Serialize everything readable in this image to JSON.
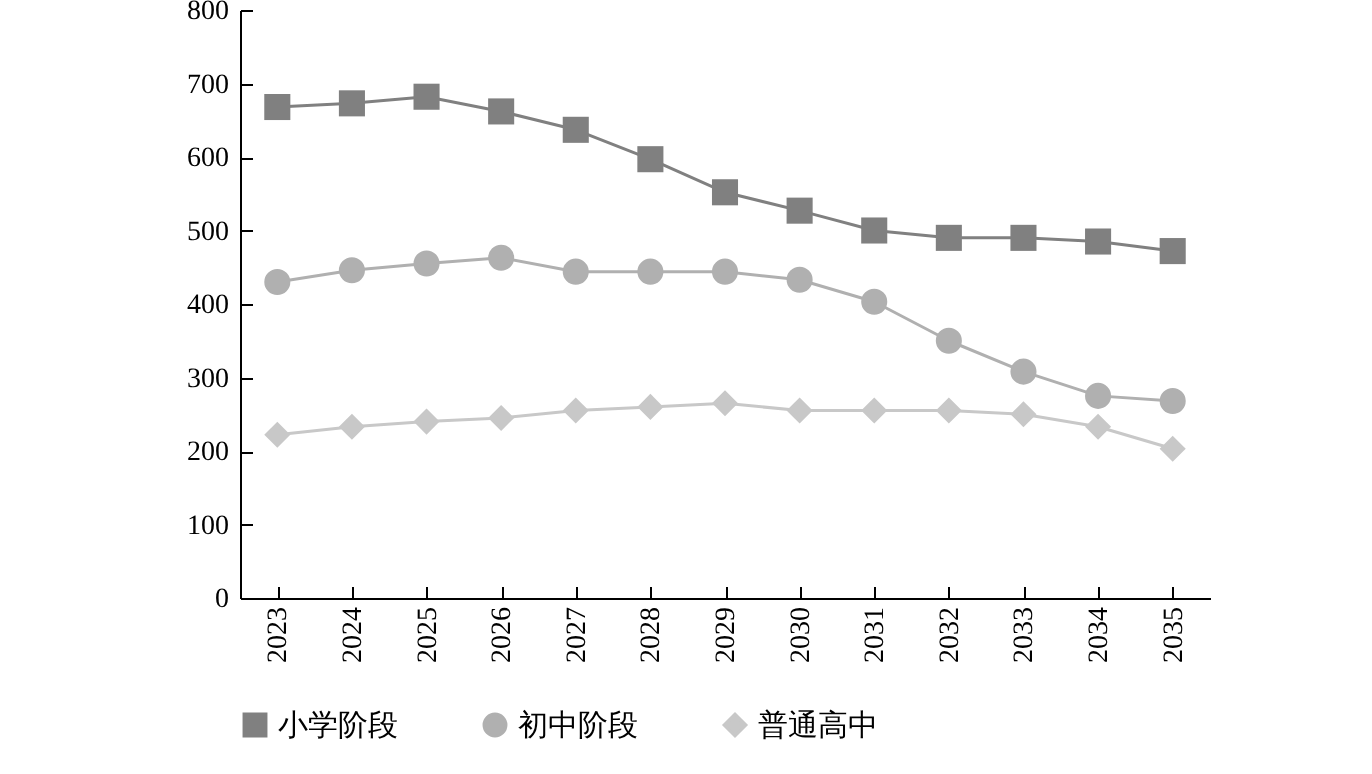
{
  "chart_data": {
    "type": "line",
    "categories": [
      "2023",
      "2024",
      "2025",
      "2026",
      "2027",
      "2028",
      "2029",
      "2030",
      "2031",
      "2032",
      "2033",
      "2034",
      "2035"
    ],
    "series": [
      {
        "name": "小学阶段",
        "color": "#808080",
        "marker": "square",
        "values": [
          668,
          673,
          682,
          662,
          637,
          597,
          552,
          527,
          500,
          490,
          490,
          485,
          472
        ]
      },
      {
        "name": "初中阶段",
        "color": "#b0b0b0",
        "marker": "circle",
        "values": [
          430,
          446,
          455,
          463,
          444,
          444,
          444,
          433,
          403,
          350,
          308,
          275,
          268
        ]
      },
      {
        "name": "普通高中",
        "color": "#c8c8c8",
        "marker": "diamond",
        "values": [
          222,
          233,
          240,
          245,
          255,
          260,
          265,
          255,
          255,
          255,
          250,
          233,
          203
        ]
      }
    ],
    "ylim": [
      0,
      800
    ],
    "yticks": [
      0,
      100,
      200,
      300,
      400,
      500,
      600,
      700,
      800
    ],
    "grid": false,
    "legend": "bottom",
    "line_style": "solid"
  }
}
